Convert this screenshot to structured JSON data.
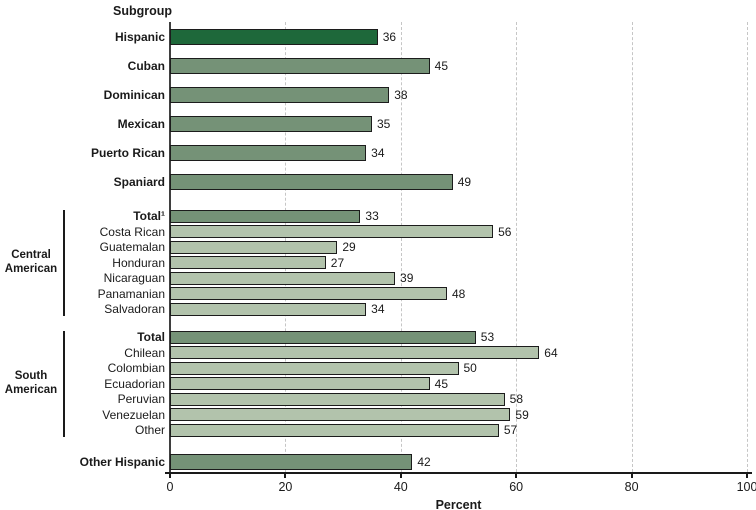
{
  "chart_data": {
    "type": "bar",
    "orientation": "horizontal",
    "title": "Subgroup",
    "xlabel": "Percent",
    "xlim": [
      0,
      100
    ],
    "xticks": [
      0,
      20,
      40,
      60,
      80,
      100
    ],
    "grid": "dashed vertical gridlines at each tick",
    "legend": null,
    "colors": {
      "dark": "#1e683a",
      "medium": "#759277",
      "light": "#b2c3ac",
      "bar_border": "#1c1c1c",
      "axis": "#1a1a1a",
      "gridline": "#c6c6c6"
    },
    "sections": [
      {
        "group": null,
        "size": "large",
        "rows": [
          {
            "label": "Hispanic",
            "value": 36,
            "shade": "dark",
            "bold": true
          },
          {
            "label": "Cuban",
            "value": 45,
            "shade": "medium",
            "bold": true
          },
          {
            "label": "Dominican",
            "value": 38,
            "shade": "medium",
            "bold": true
          },
          {
            "label": "Mexican",
            "value": 35,
            "shade": "medium",
            "bold": true
          },
          {
            "label": "Puerto Rican",
            "value": 34,
            "shade": "medium",
            "bold": true
          },
          {
            "label": "Spaniard",
            "value": 49,
            "shade": "medium",
            "bold": true
          }
        ]
      },
      {
        "group": "Central American",
        "size": "small",
        "rows": [
          {
            "label": "Total¹",
            "value": 33,
            "shade": "medium",
            "bold": true
          },
          {
            "label": "Costa Rican",
            "value": 56,
            "shade": "light",
            "bold": false
          },
          {
            "label": "Guatemalan",
            "value": 29,
            "shade": "light",
            "bold": false
          },
          {
            "label": "Honduran",
            "value": 27,
            "shade": "light",
            "bold": false
          },
          {
            "label": "Nicaraguan",
            "value": 39,
            "shade": "light",
            "bold": false
          },
          {
            "label": "Panamanian",
            "value": 48,
            "shade": "light",
            "bold": false
          },
          {
            "label": "Salvadoran",
            "value": 34,
            "shade": "light",
            "bold": false
          }
        ]
      },
      {
        "group": "South American",
        "size": "small",
        "rows": [
          {
            "label": "Total",
            "value": 53,
            "shade": "medium",
            "bold": true
          },
          {
            "label": "Chilean",
            "value": 64,
            "shade": "light",
            "bold": false
          },
          {
            "label": "Colombian",
            "value": 50,
            "shade": "light",
            "bold": false
          },
          {
            "label": "Ecuadorian",
            "value": 45,
            "shade": "light",
            "bold": false
          },
          {
            "label": "Peruvian",
            "value": 58,
            "shade": "light",
            "bold": false
          },
          {
            "label": "Venezuelan",
            "value": 59,
            "shade": "light",
            "bold": false
          },
          {
            "label": "Other",
            "value": 57,
            "shade": "light",
            "bold": false
          }
        ]
      },
      {
        "group": null,
        "size": "final",
        "rows": [
          {
            "label": "Other Hispanic",
            "value": 42,
            "shade": "medium",
            "bold": true
          }
        ]
      }
    ]
  }
}
